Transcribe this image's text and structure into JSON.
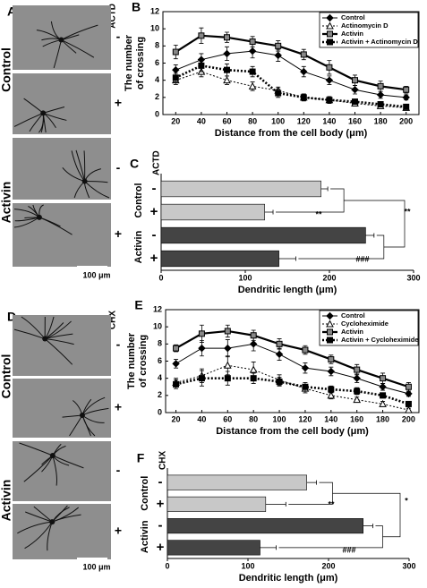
{
  "images": [
    {
      "panel": "A",
      "treatment": "ACTD",
      "groups": [
        "Control",
        "Activin"
      ],
      "conditions": [
        "-",
        "+",
        "-",
        "+"
      ],
      "scale_bar": "100 μm"
    },
    {
      "panel": "D",
      "treatment": "CHX",
      "groups": [
        "Control",
        "Activin"
      ],
      "conditions": [
        "-",
        "+",
        "-",
        "+"
      ],
      "scale_bar": "100 μm"
    }
  ],
  "chart_data": [
    {
      "type": "line",
      "panel": "B",
      "xlabel": "Distance from the cell body  (μm)",
      "ylabel": [
        "The number",
        "of crossing"
      ],
      "x": [
        20,
        40,
        60,
        80,
        100,
        120,
        140,
        160,
        180,
        200
      ],
      "xlim": [
        10,
        210
      ],
      "xticks": [
        20,
        40,
        60,
        80,
        100,
        120,
        140,
        160,
        180,
        200
      ],
      "ylim": [
        0,
        12
      ],
      "yticks": [
        0,
        2,
        4,
        6,
        8,
        10,
        12
      ],
      "legend": "upper right",
      "series": [
        {
          "name": "Control",
          "color": "#000000",
          "dash": false,
          "width": 1,
          "marker": "diamond",
          "marker_fill": "#000000",
          "values": [
            5.2,
            6.4,
            7.1,
            7.4,
            6.9,
            5.0,
            4.0,
            2.9,
            2.3,
            2.0
          ],
          "errors": [
            0.6,
            0.7,
            0.8,
            0.8,
            0.7,
            0.6,
            0.5,
            0.5,
            0.4,
            0.3
          ]
        },
        {
          "name": "Actinomycin D",
          "color": "#000000",
          "dash": true,
          "width": 1,
          "marker": "triangle",
          "marker_fill": "#ffffff",
          "values": [
            4.0,
            5.0,
            4.0,
            3.3,
            2.8,
            2.0,
            1.7,
            1.3,
            1.0,
            0.8
          ],
          "errors": [
            0.5,
            0.6,
            0.5,
            0.5,
            0.4,
            0.4,
            0.3,
            0.3,
            0.3,
            0.2
          ]
        },
        {
          "name": "Activin",
          "color": "#000000",
          "dash": false,
          "width": 2.2,
          "marker": "square",
          "marker_fill": "#888888",
          "values": [
            7.3,
            9.2,
            9.0,
            8.5,
            8.0,
            7.0,
            5.5,
            4.0,
            3.3,
            2.9
          ],
          "errors": [
            0.8,
            0.9,
            0.6,
            0.6,
            0.6,
            0.6,
            0.8,
            0.6,
            0.6,
            0.4
          ]
        },
        {
          "name": "Activin + Actinomycin D",
          "color": "#000000",
          "dash": true,
          "width": 2.6,
          "marker": "square",
          "marker_fill": "#000000",
          "values": [
            4.3,
            5.7,
            5.2,
            5.0,
            2.5,
            2.0,
            1.7,
            1.5,
            1.2,
            0.9
          ],
          "errors": [
            0.5,
            0.7,
            0.7,
            0.6,
            0.5,
            0.4,
            0.4,
            0.3,
            0.3,
            0.2
          ]
        }
      ]
    },
    {
      "type": "hbar",
      "panel": "C",
      "group_title": "ACTD",
      "groups": [
        "Control",
        "Activin"
      ],
      "categories": [
        "-",
        "+",
        "-",
        "+"
      ],
      "values": [
        190,
        123,
        243,
        140
      ],
      "errors": [
        8,
        10,
        10,
        20
      ],
      "colors": [
        "#c8c8c8",
        "#c8c8c8",
        "#444444",
        "#444444"
      ],
      "xlim": [
        0,
        300
      ],
      "xticks": [
        0,
        100,
        200,
        300
      ],
      "xlabel": "Dendritic length  (μm)",
      "annotations": [
        "**",
        "**",
        "###"
      ]
    },
    {
      "type": "line",
      "panel": "E",
      "xlabel": "Distance from the cell body  (μm)",
      "ylabel": [
        "The number",
        "of crossing"
      ],
      "x": [
        20,
        40,
        60,
        80,
        100,
        120,
        140,
        160,
        180,
        200
      ],
      "xlim": [
        12,
        208
      ],
      "xticks": [
        20,
        40,
        60,
        80,
        100,
        120,
        140,
        160,
        180,
        200
      ],
      "ylim": [
        0,
        12
      ],
      "yticks": [
        0,
        2,
        4,
        6,
        8,
        10,
        12
      ],
      "legend": "upper right",
      "series": [
        {
          "name": "Control",
          "color": "#000000",
          "dash": false,
          "width": 1,
          "marker": "diamond",
          "marker_fill": "#000000",
          "values": [
            5.7,
            7.5,
            7.5,
            8.0,
            6.8,
            5.2,
            4.8,
            4.0,
            3.0,
            2.2
          ],
          "errors": [
            0.5,
            0.9,
            1.0,
            0.8,
            0.7,
            0.6,
            0.5,
            0.5,
            0.4,
            0.3
          ]
        },
        {
          "name": "Cycloheximide",
          "color": "#000000",
          "dash": true,
          "width": 1,
          "marker": "triangle",
          "marker_fill": "#ffffff",
          "values": [
            3.5,
            4.3,
            5.5,
            5.0,
            3.8,
            2.8,
            2.0,
            1.5,
            1.0,
            0.3
          ],
          "errors": [
            0.5,
            0.8,
            1.1,
            0.9,
            0.6,
            0.5,
            0.4,
            0.3,
            0.3,
            0.2
          ]
        },
        {
          "name": "Activin",
          "color": "#000000",
          "dash": false,
          "width": 2.2,
          "marker": "square",
          "marker_fill": "#888888",
          "values": [
            7.5,
            9.2,
            9.5,
            9.0,
            8.0,
            7.3,
            6.2,
            5.0,
            4.0,
            3.0
          ],
          "errors": [
            0.4,
            1.0,
            0.7,
            0.6,
            0.6,
            0.5,
            0.5,
            0.6,
            0.6,
            0.5
          ]
        },
        {
          "name": "Activin + Cycloheximide",
          "color": "#000000",
          "dash": true,
          "width": 2.6,
          "marker": "square",
          "marker_fill": "#000000",
          "values": [
            3.3,
            4.0,
            4.0,
            4.0,
            3.6,
            3.0,
            2.7,
            2.5,
            2.0,
            1.0
          ],
          "errors": [
            0.5,
            0.9,
            0.8,
            0.6,
            0.5,
            0.5,
            0.4,
            0.4,
            0.3,
            0.3
          ]
        }
      ]
    },
    {
      "type": "hbar",
      "panel": "F",
      "group_title": "CHX",
      "groups": [
        "Control",
        "Activin"
      ],
      "categories": [
        "-",
        "+",
        "-",
        "+"
      ],
      "values": [
        173,
        122,
        243,
        115
      ],
      "errors": [
        12,
        25,
        12,
        20
      ],
      "colors": [
        "#c8c8c8",
        "#c8c8c8",
        "#444444",
        "#444444"
      ],
      "xlim": [
        0,
        300
      ],
      "xticks": [
        0,
        100,
        200,
        300
      ],
      "xlabel": "Dendritic length  (μm)",
      "annotations": [
        "**",
        "*",
        "###"
      ]
    }
  ]
}
